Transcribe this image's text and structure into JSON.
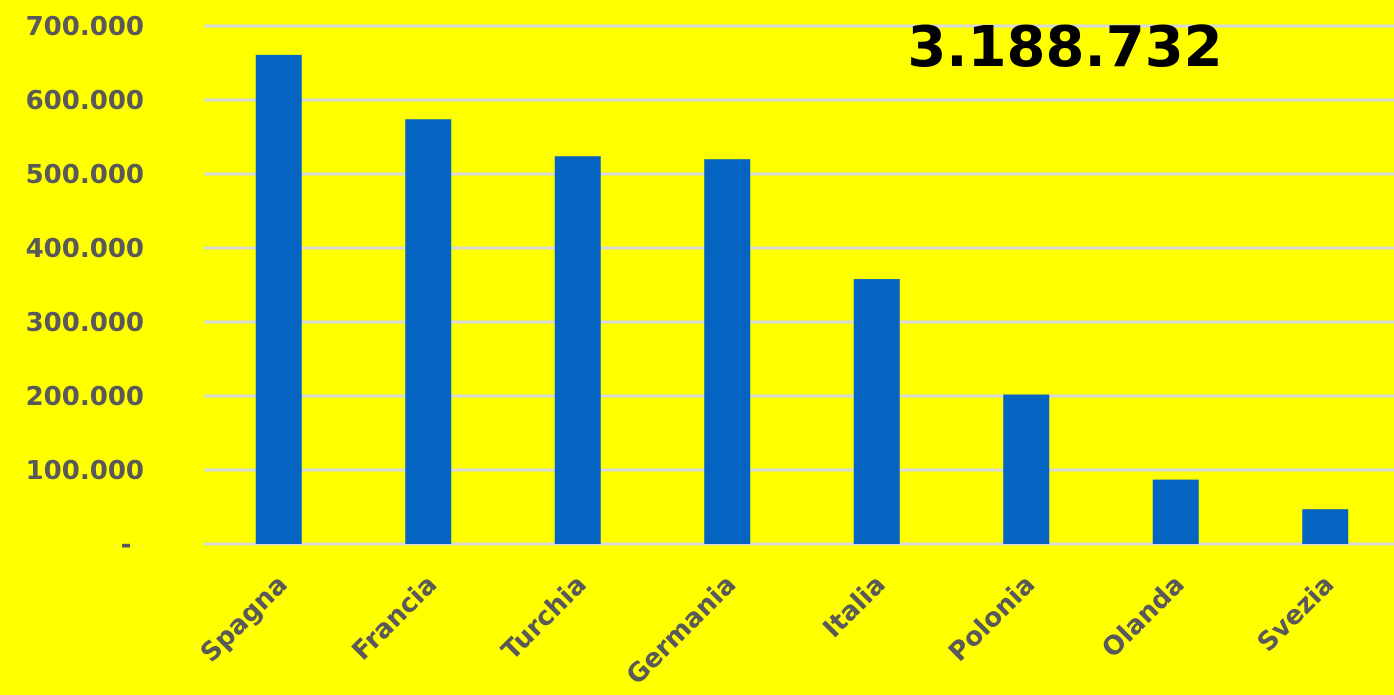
{
  "chart_data": {
    "type": "bar",
    "categories": [
      "Spagna",
      "Francia",
      "Turchia",
      "Germania",
      "Italia",
      "Polonia",
      "Olanda",
      "Svezia"
    ],
    "values": [
      661000,
      574000,
      524000,
      520000,
      358000,
      202000,
      87000,
      47000
    ],
    "ylim": [
      0,
      700000
    ],
    "yticks": [
      0,
      100000,
      200000,
      300000,
      400000,
      500000,
      600000,
      700000
    ],
    "ytick_labels": [
      "-",
      "100.000",
      "200.000",
      "300.000",
      "400.000",
      "500.000",
      "600.000",
      "700.000"
    ],
    "annotation": "3.188.732",
    "grid": true,
    "legend": "none"
  },
  "colors": {
    "background": "#ffff00",
    "bar": "#0563c1",
    "grid": "#d9d9d9",
    "axis_text": "#595959",
    "annotation_text": "#000000"
  }
}
